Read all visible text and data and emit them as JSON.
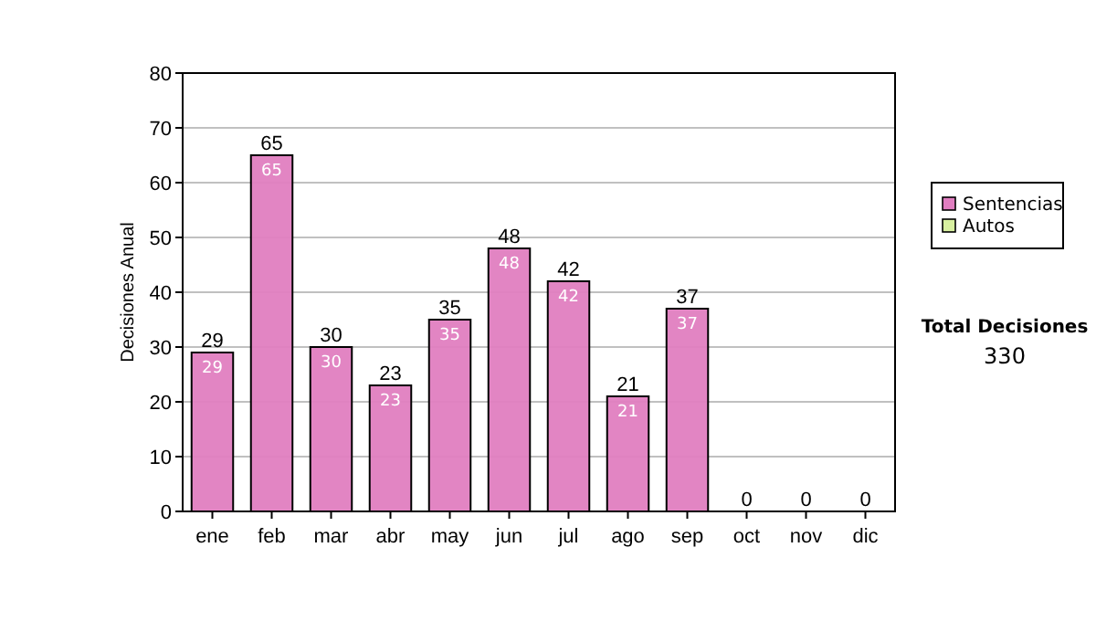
{
  "chart_data": {
    "type": "bar",
    "stacked": true,
    "ylabel": "Decisiones Anual",
    "categories": [
      "ene",
      "feb",
      "mar",
      "abr",
      "may",
      "jun",
      "jul",
      "ago",
      "sep",
      "oct",
      "nov",
      "dic"
    ],
    "series": [
      {
        "name": "Sentencias",
        "color": "#e07ec0",
        "values": [
          29,
          65,
          30,
          23,
          35,
          48,
          42,
          21,
          37,
          0,
          0,
          0
        ],
        "value_labels": [
          "29",
          "65",
          "30",
          "23",
          "35",
          "48",
          "42",
          "21",
          "37",
          null,
          null,
          null
        ]
      },
      {
        "name": "Autos",
        "color": "#d8f0a0",
        "values": [
          0,
          0,
          0,
          0,
          0,
          0,
          0,
          0,
          0,
          0,
          0,
          0
        ]
      }
    ],
    "totals": [
      "29",
      "65",
      "30",
      "23",
      "35",
      "48",
      "42",
      "21",
      "37",
      "0",
      "0",
      "0"
    ],
    "ylim": [
      0,
      80
    ],
    "yticks": [
      0,
      10,
      20,
      30,
      40,
      50,
      60,
      70,
      80
    ],
    "grid": "y",
    "legend": "right",
    "annotations": [
      "Total Decisiones",
      "330"
    ]
  }
}
